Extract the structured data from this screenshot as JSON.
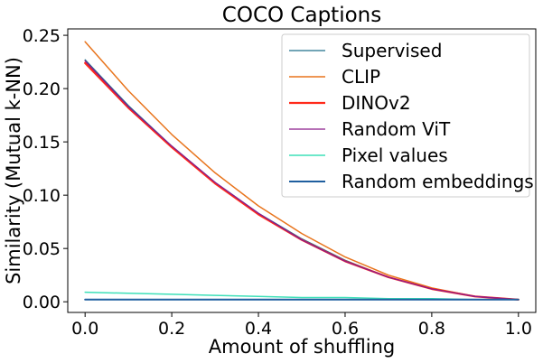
{
  "chart_data": {
    "type": "line",
    "title": "COCO Captions",
    "xlabel": "Amount of shuffling",
    "ylabel": "Similarity (Mutual k-NN)",
    "xlim": [
      -0.04,
      1.04
    ],
    "ylim": [
      -0.01,
      0.256
    ],
    "x_ticks": [
      0.0,
      0.2,
      0.4,
      0.6,
      0.8,
      1.0
    ],
    "x_tick_labels": [
      "0.0",
      "0.2",
      "0.4",
      "0.6",
      "0.8",
      "1.0"
    ],
    "y_ticks": [
      0.0,
      0.05,
      0.1,
      0.15,
      0.2,
      0.25
    ],
    "y_tick_labels": [
      "0.00",
      "0.05",
      "0.10",
      "0.15",
      "0.20",
      "0.25"
    ],
    "x": [
      0.0,
      0.1,
      0.2,
      0.3,
      0.4,
      0.5,
      0.6,
      0.7,
      0.8,
      0.9,
      1.0
    ],
    "legend_position": "top-right",
    "series": [
      {
        "name": "Supervised",
        "color": "#1f6f8b",
        "width": 1.3,
        "values": [
          0.227,
          0.184,
          0.146,
          0.112,
          0.083,
          0.059,
          0.039,
          0.023,
          0.012,
          0.005,
          0.002
        ]
      },
      {
        "name": "CLIP",
        "color": "#e8741c",
        "width": 1.5,
        "values": [
          0.244,
          0.198,
          0.157,
          0.121,
          0.09,
          0.064,
          0.042,
          0.025,
          0.013,
          0.005,
          0.002
        ]
      },
      {
        "name": "DINOv2",
        "color": "#ff2a1a",
        "width": 2.2,
        "values": [
          0.224,
          0.182,
          0.145,
          0.111,
          0.082,
          0.058,
          0.038,
          0.023,
          0.012,
          0.005,
          0.002
        ]
      },
      {
        "name": "Random ViT",
        "color": "#8b1a8b",
        "width": 1.3,
        "values": [
          0.226,
          0.183,
          0.146,
          0.112,
          0.083,
          0.058,
          0.038,
          0.023,
          0.012,
          0.005,
          0.002
        ]
      },
      {
        "name": "Pixel values",
        "color": "#3de0b8",
        "width": 1.5,
        "values": [
          0.009,
          0.008,
          0.007,
          0.006,
          0.005,
          0.004,
          0.004,
          0.003,
          0.003,
          0.002,
          0.002
        ]
      },
      {
        "name": "Random embeddings",
        "color": "#1f5f9f",
        "width": 2.0,
        "values": [
          0.002,
          0.002,
          0.002,
          0.002,
          0.002,
          0.002,
          0.002,
          0.002,
          0.002,
          0.002,
          0.002
        ]
      }
    ]
  }
}
